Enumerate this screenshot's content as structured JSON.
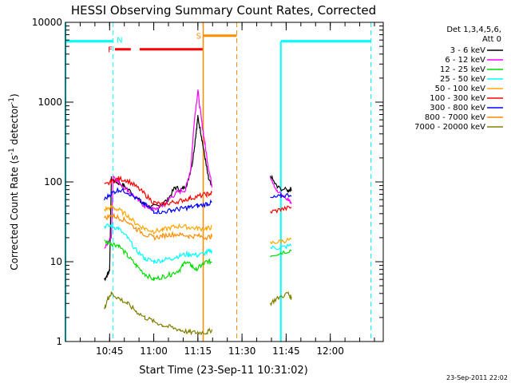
{
  "chart_data": {
    "type": "line",
    "title": "HESSI Observing Summary Count Rates, Corrected",
    "xlabel": "Start Time (23-Sep-11 10:31:02)",
    "ylabel": "Corrected Count Rate (s",
    "ylabel_sup": "-1",
    "ylabel_mid": " detector",
    "ylabel_sup2": "-1",
    "ylabel_end": ")",
    "y_scale": "log",
    "ylim": [
      1,
      10000
    ],
    "xlim_minutes": [
      10.5,
      12.3
    ],
    "x_tick_labels": [
      "10:45",
      "11:00",
      "11:15",
      "11:30",
      "11:45",
      "12:00"
    ],
    "x_tick_values": [
      10.75,
      11.0,
      11.25,
      11.5,
      11.75,
      12.0
    ],
    "y_tick_labels": [
      "1",
      "10",
      "100",
      "1000",
      "10000"
    ],
    "y_tick_values": [
      1,
      10,
      100,
      1000,
      10000
    ],
    "legend": {
      "header_line1": "Det 1,3,4,5,6,",
      "header_line2": "Att 0",
      "position": "right"
    },
    "series": [
      {
        "name": "3 - 6 keV",
        "color": "#000000",
        "points": [
          [
            10.72,
            6
          ],
          [
            10.74,
            7
          ],
          [
            10.75,
            8
          ],
          [
            10.76,
            110
          ],
          [
            10.79,
            100
          ],
          [
            10.83,
            90
          ],
          [
            10.88,
            72
          ],
          [
            10.93,
            55
          ],
          [
            10.98,
            48
          ],
          [
            11.03,
            50
          ],
          [
            11.08,
            60
          ],
          [
            11.12,
            85
          ],
          [
            11.16,
            80
          ],
          [
            11.19,
            95
          ],
          [
            11.22,
            180
          ],
          [
            11.24,
            420
          ],
          [
            11.25,
            650
          ],
          [
            11.27,
            380
          ],
          [
            11.29,
            200
          ],
          [
            11.31,
            110
          ],
          [
            11.33,
            85
          ]
        ],
        "points2": [
          [
            11.66,
            120
          ],
          [
            11.7,
            85
          ],
          [
            11.76,
            78
          ],
          [
            11.78,
            82
          ]
        ]
      },
      {
        "name": "6 - 12 keV",
        "color": "#ff00ff",
        "points": [
          [
            10.72,
            15
          ],
          [
            10.76,
            20
          ],
          [
            10.77,
            120
          ],
          [
            10.8,
            100
          ],
          [
            10.85,
            80
          ],
          [
            10.9,
            62
          ],
          [
            10.95,
            50
          ],
          [
            11.0,
            45
          ],
          [
            11.05,
            50
          ],
          [
            11.1,
            65
          ],
          [
            11.14,
            75
          ],
          [
            11.18,
            80
          ],
          [
            11.21,
            150
          ],
          [
            11.23,
            600
          ],
          [
            11.25,
            1400
          ],
          [
            11.27,
            600
          ],
          [
            11.29,
            300
          ],
          [
            11.31,
            150
          ],
          [
            11.33,
            90
          ]
        ],
        "points2": [
          [
            11.66,
            120
          ],
          [
            11.7,
            75
          ],
          [
            11.76,
            60
          ],
          [
            11.78,
            55
          ]
        ]
      },
      {
        "name": "12 - 25 keV",
        "color": "#00dd00",
        "points": [
          [
            10.72,
            18
          ],
          [
            10.76,
            17
          ],
          [
            10.8,
            16
          ],
          [
            10.85,
            12
          ],
          [
            10.9,
            9
          ],
          [
            10.95,
            7
          ],
          [
            11.0,
            6
          ],
          [
            11.05,
            6.5
          ],
          [
            11.1,
            7
          ],
          [
            11.15,
            8
          ],
          [
            11.18,
            10
          ],
          [
            11.21,
            9
          ],
          [
            11.24,
            8
          ],
          [
            11.27,
            9
          ],
          [
            11.3,
            10
          ],
          [
            11.33,
            10
          ]
        ],
        "points2": [
          [
            11.66,
            12
          ],
          [
            11.72,
            13
          ],
          [
            11.78,
            14
          ]
        ]
      },
      {
        "name": "25 - 50 keV",
        "color": "#00ffff",
        "points": [
          [
            10.72,
            28
          ],
          [
            10.76,
            28
          ],
          [
            10.8,
            26
          ],
          [
            10.85,
            20
          ],
          [
            10.9,
            14
          ],
          [
            10.95,
            11
          ],
          [
            11.0,
            10
          ],
          [
            11.05,
            10.5
          ],
          [
            11.1,
            11
          ],
          [
            11.15,
            12
          ],
          [
            11.2,
            12.5
          ],
          [
            11.25,
            12
          ],
          [
            11.3,
            13
          ],
          [
            11.33,
            14
          ]
        ],
        "points2": [
          [
            11.66,
            15
          ],
          [
            11.72,
            15
          ],
          [
            11.78,
            16
          ]
        ]
      },
      {
        "name": "50 - 100 keV",
        "color": "#ffa500",
        "points": [
          [
            10.72,
            45
          ],
          [
            10.76,
            48
          ],
          [
            10.8,
            45
          ],
          [
            10.85,
            38
          ],
          [
            10.9,
            30
          ],
          [
            10.95,
            26
          ],
          [
            11.0,
            24
          ],
          [
            11.05,
            25
          ],
          [
            11.1,
            27
          ],
          [
            11.15,
            28
          ],
          [
            11.2,
            27
          ],
          [
            11.25,
            26
          ],
          [
            11.3,
            26
          ],
          [
            11.33,
            27
          ]
        ],
        "points2": [
          [
            11.66,
            17
          ],
          [
            11.72,
            18
          ],
          [
            11.78,
            19
          ]
        ]
      },
      {
        "name": "100 - 300 keV",
        "color": "#ff0000",
        "points": [
          [
            10.72,
            90
          ],
          [
            10.76,
            100
          ],
          [
            10.8,
            110
          ],
          [
            10.85,
            105
          ],
          [
            10.9,
            88
          ],
          [
            10.95,
            70
          ],
          [
            11.0,
            55
          ],
          [
            11.05,
            52
          ],
          [
            11.1,
            55
          ],
          [
            11.15,
            58
          ],
          [
            11.2,
            62
          ],
          [
            11.25,
            66
          ],
          [
            11.3,
            70
          ],
          [
            11.33,
            72
          ]
        ],
        "points2": [
          [
            11.66,
            42
          ],
          [
            11.72,
            45
          ],
          [
            11.78,
            48
          ]
        ]
      },
      {
        "name": "300 - 800 keV",
        "color": "#0000ff",
        "points": [
          [
            10.72,
            60
          ],
          [
            10.76,
            72
          ],
          [
            10.8,
            80
          ],
          [
            10.85,
            75
          ],
          [
            10.9,
            62
          ],
          [
            10.95,
            52
          ],
          [
            11.0,
            43
          ],
          [
            11.05,
            42
          ],
          [
            11.1,
            44
          ],
          [
            11.15,
            46
          ],
          [
            11.2,
            48
          ],
          [
            11.25,
            50
          ],
          [
            11.3,
            53
          ],
          [
            11.33,
            55
          ]
        ],
        "points2": [
          [
            11.66,
            62
          ],
          [
            11.72,
            66
          ],
          [
            11.78,
            70
          ]
        ]
      },
      {
        "name": "800 - 7000 keV",
        "color": "#ff8c00",
        "points": [
          [
            10.72,
            35
          ],
          [
            10.76,
            38
          ],
          [
            10.8,
            36
          ],
          [
            10.85,
            32
          ],
          [
            10.9,
            26
          ],
          [
            10.95,
            22
          ],
          [
            11.0,
            20
          ],
          [
            11.05,
            21
          ],
          [
            11.1,
            22
          ],
          [
            11.15,
            22
          ],
          [
            11.2,
            21
          ],
          [
            11.25,
            21
          ],
          [
            11.3,
            20
          ],
          [
            11.33,
            21
          ]
        ],
        "points2": []
      },
      {
        "name": "7000 - 20000 keV",
        "color": "#808000",
        "points": [
          [
            10.72,
            2.5
          ],
          [
            10.74,
            3.5
          ],
          [
            10.76,
            4
          ],
          [
            10.8,
            3.5
          ],
          [
            10.85,
            3
          ],
          [
            10.9,
            2.4
          ],
          [
            10.95,
            2
          ],
          [
            11.0,
            1.8
          ],
          [
            11.05,
            1.6
          ],
          [
            11.1,
            1.5
          ],
          [
            11.15,
            1.4
          ],
          [
            11.2,
            1.3
          ],
          [
            11.25,
            1.3
          ],
          [
            11.3,
            1.3
          ],
          [
            11.33,
            1.4
          ]
        ],
        "points2": [
          [
            11.66,
            3
          ],
          [
            11.7,
            3.5
          ],
          [
            11.76,
            4
          ],
          [
            11.78,
            3.5
          ]
        ]
      }
    ],
    "annotations": {
      "N_label": "N",
      "F_label": "F",
      "S_label": "S"
    },
    "footer": "23-Sep-2011 22:02",
    "colors": {
      "axis": "#000000",
      "cyan": "#00ffff",
      "red": "#ff0000",
      "orange": "#ff8c00"
    }
  }
}
